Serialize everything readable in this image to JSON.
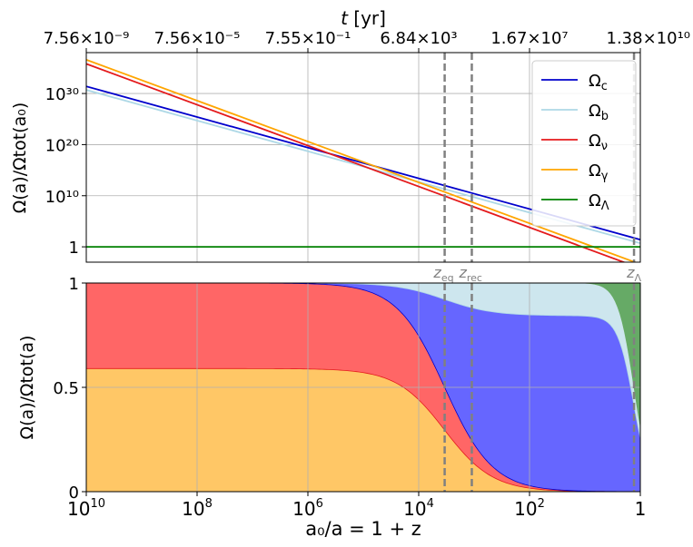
{
  "chart_data": [
    {
      "id": "top",
      "type": "line",
      "xscale": "log-reversed",
      "yscale": "log",
      "xlim": [
        10000000000.0,
        1
      ],
      "ylim": [
        0.001,
        1e+38
      ],
      "xlabel_bottom": "a₀/a = 1 + z",
      "top_axis": {
        "label_parts": [
          "t",
          " [yr]"
        ],
        "ticks": [
          {
            "x": 10000000000.0,
            "text": "7.56×10⁻⁹"
          },
          {
            "x": 100000000.0,
            "text": "7.56×10⁻⁵"
          },
          {
            "x": 1000000.0,
            "text": "7.55×10⁻¹"
          },
          {
            "x": 10000.0,
            "text": "6.84×10³"
          },
          {
            "x": 100.0,
            "text": "1.67×10⁷"
          },
          {
            "x": 1,
            "text": "1.38×10¹⁰"
          }
        ]
      },
      "ylabel": "Ω(a)/Ωtot(a₀)",
      "yticks": [
        {
          "y": 1,
          "text": "1"
        },
        {
          "y": 10000000000.0,
          "text": "10¹⁰"
        },
        {
          "y": 1e+20,
          "text": "10²⁰"
        },
        {
          "y": 1e+30,
          "text": "10³⁰"
        }
      ],
      "grid": true,
      "legend_position": "right",
      "series": [
        {
          "name": "Ωc",
          "color": "#0000cc",
          "log10_y_at_z1e10": 31.4,
          "slope_per_decade": 3
        },
        {
          "name": "Ωb",
          "color": "#add8e6",
          "log10_y_at_z1e10": 30.7,
          "slope_per_decade": 3
        },
        {
          "name": "Ων",
          "color": "#e41a1c",
          "log10_y_at_z1e10": 35.8,
          "slope_per_decade": 4
        },
        {
          "name": "Ωγ",
          "color": "#ffa500",
          "log10_y_at_z1e10": 36.6,
          "slope_per_decade": 4
        },
        {
          "name": "ΩΛ",
          "color": "#008000",
          "log10_y_at_z1e10": 0,
          "slope_per_decade": 0
        }
      ],
      "vlines": [
        {
          "name": "z_eq",
          "x": 3400,
          "label": "z",
          "sub": "eq"
        },
        {
          "name": "z_rec",
          "x": 1100,
          "label": "z",
          "sub": "rec"
        },
        {
          "name": "z_lambda",
          "x": 1.3,
          "label": "z",
          "sub": "Λ"
        }
      ]
    },
    {
      "id": "bottom",
      "type": "area",
      "stacked": true,
      "xscale": "log-reversed",
      "xlim": [
        10000000000.0,
        1
      ],
      "ylim": [
        0,
        1
      ],
      "xlabel": "a₀/a = 1 + z",
      "ylabel": "Ω(a)/Ωtot(a)",
      "xticks": [
        {
          "x": 10000000000.0,
          "base": "10",
          "exp": "10"
        },
        {
          "x": 100000000.0,
          "base": "10",
          "exp": "8"
        },
        {
          "x": 1000000.0,
          "base": "10",
          "exp": "6"
        },
        {
          "x": 10000.0,
          "base": "10",
          "exp": "4"
        },
        {
          "x": 100.0,
          "base": "10",
          "exp": "2"
        },
        {
          "x": 1,
          "base": "1",
          "exp": ""
        }
      ],
      "yticks": [
        {
          "y": 0,
          "text": "0"
        },
        {
          "y": 0.5,
          "text": "0.5"
        },
        {
          "y": 1,
          "text": "1"
        }
      ],
      "grid": true,
      "series": [
        {
          "name": "Ωγ",
          "color": "#ffc766"
        },
        {
          "name": "Ων",
          "color": "#ff6666"
        },
        {
          "name": "Ωc",
          "color": "#6666ff"
        },
        {
          "name": "Ωb",
          "color": "#cde6ee"
        },
        {
          "name": "ΩΛ",
          "color": "#66aa66"
        }
      ],
      "components": {
        "radiation_fraction_gamma": 0.59,
        "cdm_fraction_of_matter": 0.843,
        "z_eq": 3400,
        "lambda_over_matter_today": 2.3
      }
    }
  ]
}
